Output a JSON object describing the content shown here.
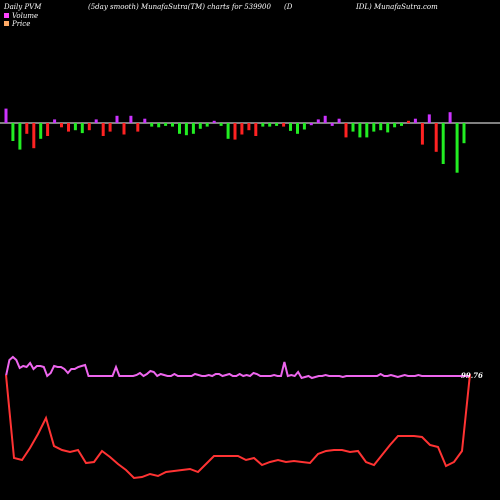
{
  "header": {
    "left": "Daily PVM",
    "mid": "(5day smooth) MunafaSutra(TM) charts for 539900",
    "right_a": "(D",
    "right_b": "IDL) MunafaSutra.com"
  },
  "legend": [
    {
      "label": "Volume",
      "color": "#ff44ff"
    },
    {
      "label": "Price",
      "color": "#ffaa66"
    }
  ],
  "chart_data": {
    "type": "bar+line",
    "baseline_color": "#ffffff",
    "colors": {
      "positive": "#cc33ff",
      "negative_red": "#ff2222",
      "negative_green": "#22ee22",
      "volume_line": "#ee66ee",
      "price_line": "#ff3333"
    },
    "volume": {
      "values": [
        2.0,
        -2.5,
        -3.7,
        -1.5,
        -3.5,
        -2.2,
        -1.8,
        0.5,
        -0.6,
        -1.2,
        -1.0,
        -1.4,
        -1.0,
        0.5,
        -1.8,
        -1.2,
        1.0,
        -1.6,
        1.0,
        -1.2,
        0.6,
        -0.5,
        -0.6,
        -0.4,
        -0.5,
        -1.5,
        -1.7,
        -1.5,
        -0.8,
        -0.5,
        0.3,
        -0.4,
        -2.2,
        -2.3,
        -1.6,
        -1.0,
        -1.8,
        -0.5,
        -0.5,
        -0.4,
        -0.5,
        -1.1,
        -1.5,
        -0.9,
        -0.3,
        0.5,
        1.0,
        -0.4,
        0.6,
        -2.0,
        -1.2,
        -2.0,
        -2.0,
        -1.2,
        -1.0,
        -1.3,
        -0.6,
        -0.4,
        0.3,
        0.6,
        -3.0,
        1.2,
        -4.0,
        -5.7,
        1.5,
        -6.9,
        -2.8
      ],
      "colors": [
        "positive",
        "negative_green",
        "negative_green",
        "negative_red",
        "negative_red",
        "negative_green",
        "negative_red",
        "positive",
        "negative_red",
        "negative_red",
        "negative_green",
        "negative_green",
        "negative_red",
        "positive",
        "negative_red",
        "negative_red",
        "positive",
        "negative_red",
        "positive",
        "negative_red",
        "positive",
        "negative_green",
        "negative_green",
        "negative_green",
        "negative_green",
        "negative_green",
        "negative_green",
        "negative_green",
        "negative_green",
        "negative_green",
        "positive",
        "negative_green",
        "negative_green",
        "negative_red",
        "negative_red",
        "negative_red",
        "negative_red",
        "negative_green",
        "negative_green",
        "negative_green",
        "negative_red",
        "negative_green",
        "negative_green",
        "negative_green",
        "positive",
        "positive",
        "positive",
        "positive",
        "positive",
        "negative_red",
        "negative_green",
        "negative_green",
        "negative_green",
        "negative_green",
        "negative_green",
        "negative_green",
        "negative_green",
        "negative_green",
        "negative_red",
        "positive",
        "negative_red",
        "positive",
        "negative_red",
        "negative_green",
        "positive",
        "negative_green",
        "negative_green"
      ]
    },
    "volume_line": [
      376,
      360,
      357,
      360,
      368,
      366,
      367,
      363,
      369,
      366,
      366,
      367,
      376,
      373,
      366,
      367,
      367,
      369,
      373,
      369,
      369,
      367,
      366,
      365,
      376,
      376,
      376,
      376,
      376,
      376,
      376,
      376,
      367,
      376,
      376,
      376,
      376,
      376,
      375,
      373,
      376,
      374,
      371,
      372,
      376,
      374,
      375,
      376,
      376,
      374,
      376,
      376,
      376,
      376,
      376,
      374,
      375,
      376,
      376,
      375,
      376,
      374,
      374,
      376,
      375,
      374,
      376,
      376,
      374,
      376,
      375,
      376,
      373,
      374,
      376,
      376,
      376,
      376,
      375,
      376,
      376,
      362,
      376,
      375,
      376,
      372,
      378,
      377,
      376,
      378,
      377,
      376,
      376,
      375,
      376,
      376,
      376,
      376,
      377,
      376,
      376,
      376,
      376,
      376,
      376,
      376,
      376,
      376,
      376,
      374,
      376,
      376,
      375,
      376,
      377,
      376,
      375,
      376,
      376,
      376,
      375,
      376,
      376,
      376,
      376,
      376,
      376,
      376,
      376,
      376,
      376,
      376,
      376,
      376,
      376,
      376
    ],
    "price_line": [
      375,
      458,
      460,
      448,
      434,
      418,
      446,
      450,
      452,
      450,
      463,
      462,
      451,
      457,
      464,
      470,
      478,
      477,
      474,
      476,
      472,
      471,
      470,
      469,
      472,
      464,
      456,
      456,
      456,
      456,
      460,
      458,
      465,
      462,
      460,
      462,
      461,
      462,
      463,
      454,
      451,
      450,
      450,
      452,
      451,
      462,
      465,
      455,
      445,
      436,
      436,
      436,
      437,
      445,
      447,
      466,
      462,
      451,
      374
    ],
    "price_last_label": "99.76"
  }
}
